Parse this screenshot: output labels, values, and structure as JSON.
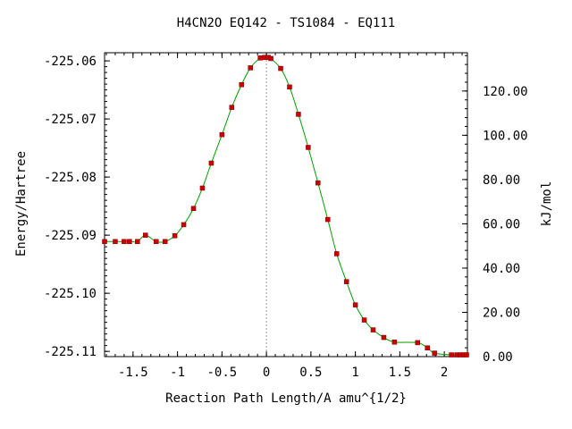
{
  "chart_data": {
    "type": "line",
    "title": "H4CN2O   EQ142 - TS1084 - EQ111",
    "xlabel": "Reaction Path Length/A amu^{1/2}",
    "ylabel": "Energy/Hartree",
    "y2label": "kJ/mol",
    "xlim": [
      -1.82,
      2.26
    ],
    "ylim": [
      -225.1109,
      -225.0586
    ],
    "y2lim": [
      0,
      137.3
    ],
    "x_ticks": [
      -1.5,
      -1,
      -0.5,
      0,
      0.5,
      1,
      1.5,
      2
    ],
    "x_tick_labels": [
      "-1.5",
      "-1",
      "-0.5",
      "0",
      "0.5",
      "1",
      "1.5",
      "2"
    ],
    "y_ticks": [
      -225.11,
      -225.1,
      -225.09,
      -225.08,
      -225.07,
      -225.06
    ],
    "y_tick_labels": [
      "-225.11",
      "-225.10",
      "-225.09",
      "-225.08",
      "-225.07",
      "-225.06"
    ],
    "y2_ticks": [
      0,
      20,
      40,
      60,
      80,
      100,
      120
    ],
    "y2_tick_labels": [
      "0.00",
      "20.00",
      "40.00",
      "60.00",
      "80.00",
      "100.00",
      "120.00"
    ],
    "ts_x": 0,
    "line_color": "#00a000",
    "marker_color": "#cc0000",
    "points": [
      [
        -1.82,
        -225.0911
      ],
      [
        -1.7,
        -225.0911
      ],
      [
        -1.6,
        -225.0911
      ],
      [
        -1.54,
        -225.0911
      ],
      [
        -1.45,
        -225.0911
      ],
      [
        -1.36,
        -225.09
      ],
      [
        -1.24,
        -225.0911
      ],
      [
        -1.14,
        -225.0911
      ],
      [
        -1.03,
        -225.0901
      ],
      [
        -0.93,
        -225.0882
      ],
      [
        -0.82,
        -225.0854
      ],
      [
        -0.72,
        -225.0819
      ],
      [
        -0.62,
        -225.0776
      ],
      [
        -0.5,
        -225.0727
      ],
      [
        -0.39,
        -225.068
      ],
      [
        -0.28,
        -225.0641
      ],
      [
        -0.18,
        -225.0612
      ],
      [
        -0.07,
        -225.0595
      ],
      [
        -0.02,
        -225.0594
      ],
      [
        0.02,
        -225.0594
      ],
      [
        0.05,
        -225.0596
      ],
      [
        0.16,
        -225.0613
      ],
      [
        0.26,
        -225.0645
      ],
      [
        0.36,
        -225.0692
      ],
      [
        0.47,
        -225.0749
      ],
      [
        0.58,
        -225.081
      ],
      [
        0.69,
        -225.0873
      ],
      [
        0.79,
        -225.0932
      ],
      [
        0.9,
        -225.098
      ],
      [
        1.0,
        -225.102
      ],
      [
        1.1,
        -225.1046
      ],
      [
        1.2,
        -225.1063
      ],
      [
        1.32,
        -225.1076
      ],
      [
        1.44,
        -225.1084
      ],
      [
        1.7,
        -225.1085
      ],
      [
        1.81,
        -225.1094
      ],
      [
        1.89,
        -225.1103
      ],
      [
        2.08,
        -225.1106
      ],
      [
        2.14,
        -225.1106
      ],
      [
        2.18,
        -225.1106
      ],
      [
        2.22,
        -225.1106
      ],
      [
        2.25,
        -225.1106
      ]
    ]
  }
}
